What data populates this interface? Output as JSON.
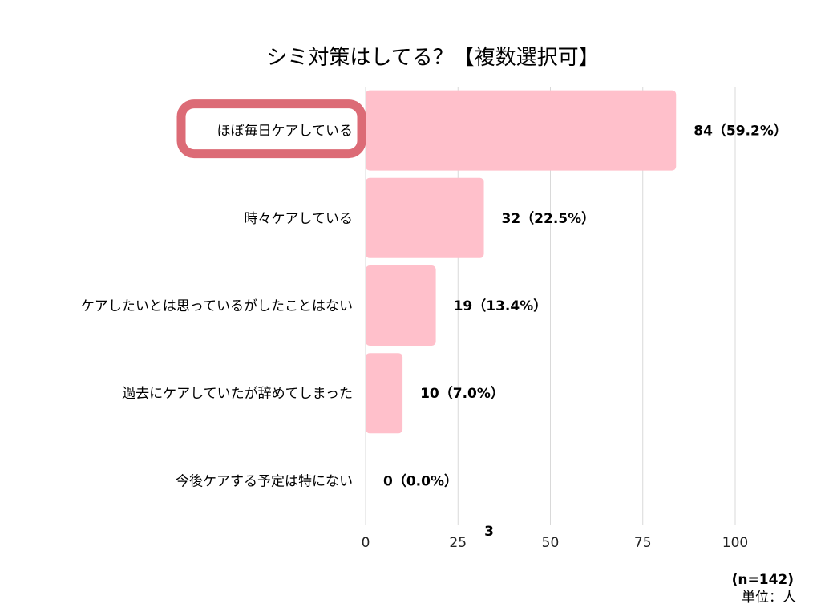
{
  "chart_data": {
    "type": "bar",
    "orientation": "horizontal",
    "title": "シミ対策はしてる？【複数選択可】",
    "categories": [
      "ほぼ毎日ケアしている",
      "時々ケアしている",
      "ケアしたいとは思っているがしたことはない",
      "過去にケアしていたが辞めてしまった",
      "今後ケアする予定は特にない"
    ],
    "values": [
      84,
      32,
      19,
      10,
      0
    ],
    "value_labels": [
      "84（59.2%）",
      "32（22.5%）",
      "19（13.4%）",
      "10（7.0%）",
      "0（0.0%）"
    ],
    "xlim": [
      0,
      100
    ],
    "xticks": [
      "0",
      "25",
      "50",
      "75",
      "100"
    ],
    "grid": true,
    "highlighted_category": "ほぼ毎日ケアしている",
    "stray_label": "3",
    "colors": {
      "bar": "#ffc0cb",
      "highlight": "#dc6b76",
      "grid": "#d9d9d9",
      "text": "#111111"
    }
  },
  "notes": {
    "sample": "(n=142)",
    "unit": "単位：人"
  }
}
